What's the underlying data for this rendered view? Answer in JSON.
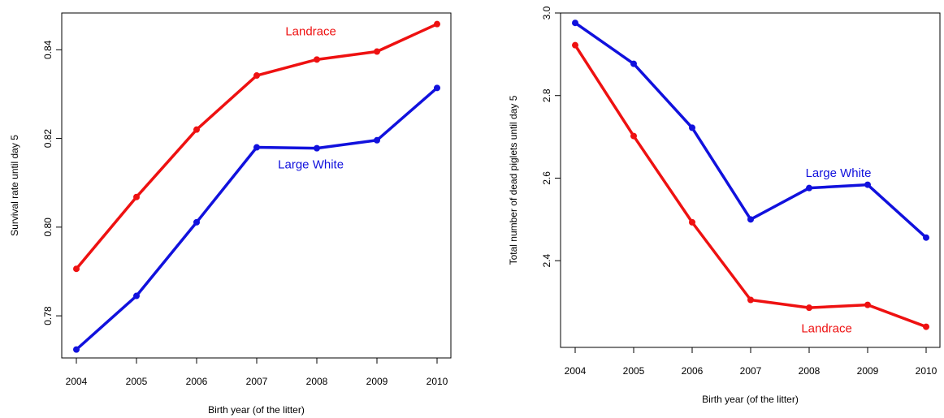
{
  "colors": {
    "Landrace": "#ee1111",
    "Large White": "#1111dd",
    "axis": "#000000"
  },
  "chart_data": [
    {
      "type": "line",
      "xlabel": "Birth year (of the litter)",
      "ylabel": "Survival rate until day 5",
      "x": [
        2004,
        2005,
        2006,
        2007,
        2008,
        2009,
        2010
      ],
      "x_ticks": [
        "2004",
        "2005",
        "2006",
        "2007",
        "2008",
        "2009",
        "2010"
      ],
      "y_ticks": [
        "0.78",
        "0.80",
        "0.82",
        "0.84"
      ],
      "ylim": [
        0.7705,
        0.8483
      ],
      "grid": false,
      "series": [
        {
          "name": "Landrace",
          "color": "#ee1111",
          "values": [
            0.7906,
            0.8068,
            0.822,
            0.8342,
            0.8378,
            0.8396,
            0.8458
          ]
        },
        {
          "name": "Large White",
          "color": "#1111dd",
          "values": [
            0.7724,
            0.7845,
            0.8011,
            0.818,
            0.8178,
            0.8196,
            0.8314
          ]
        }
      ],
      "annotations": [
        {
          "text": "Landrace",
          "series": "Landrace",
          "x": 2007.9,
          "y": 0.8433
        },
        {
          "text": "Large White",
          "series": "Large White",
          "x": 2007.9,
          "y": 0.8132
        }
      ]
    },
    {
      "type": "line",
      "xlabel": "Birth year (of the litter)",
      "ylabel": "Total number of dead piglets until day 5",
      "x": [
        2004,
        2005,
        2006,
        2007,
        2008,
        2009,
        2010
      ],
      "x_ticks": [
        "2004",
        "2005",
        "2006",
        "2007",
        "2008",
        "2009",
        "2010"
      ],
      "y_ticks": [
        "2.4",
        "2.6",
        "2.8",
        "3.0"
      ],
      "ylim": [
        2.19,
        3.0
      ],
      "grid": false,
      "series": [
        {
          "name": "Large White",
          "color": "#1111dd",
          "values": [
            2.976,
            2.877,
            2.722,
            2.5,
            2.576,
            2.584,
            2.456
          ]
        },
        {
          "name": "Landrace",
          "color": "#ee1111",
          "values": [
            2.922,
            2.702,
            2.493,
            2.305,
            2.286,
            2.293,
            2.24
          ]
        }
      ],
      "annotations": [
        {
          "text": "Large White",
          "series": "Large White",
          "x": 2008.5,
          "y": 2.603
        },
        {
          "text": "Landrace",
          "series": "Landrace",
          "x": 2008.3,
          "y": 2.226
        }
      ]
    }
  ]
}
